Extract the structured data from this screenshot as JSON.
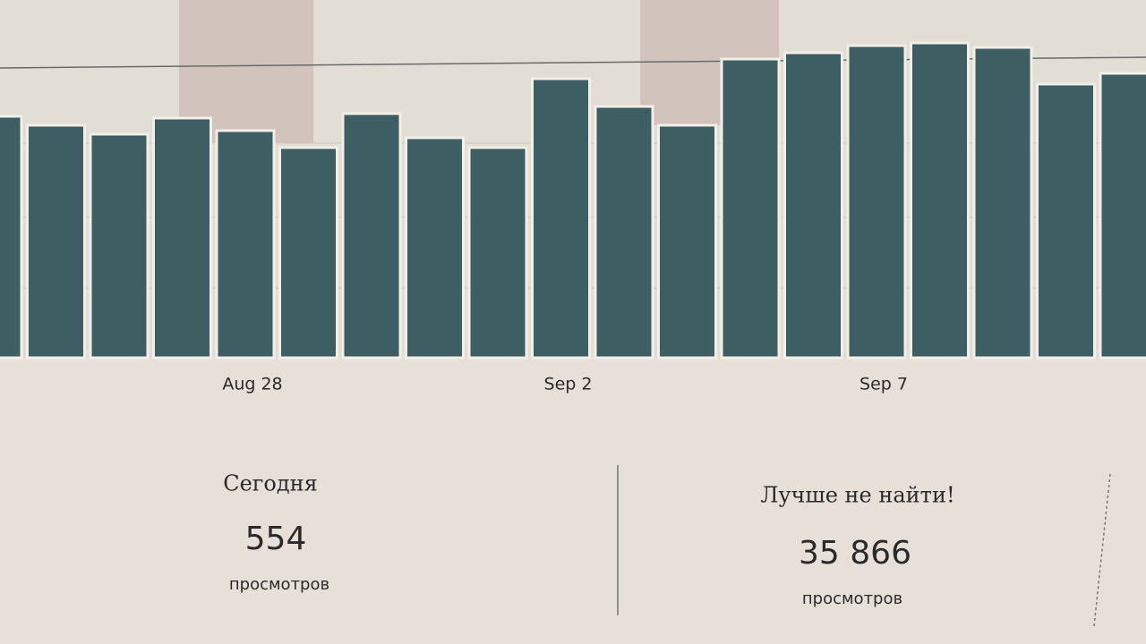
{
  "chart_data": {
    "type": "bar",
    "categories": [
      null,
      null,
      null,
      null,
      "Aug 28",
      null,
      null,
      null,
      null,
      "Sep 2",
      null,
      null,
      null,
      null,
      "Sep 7",
      null,
      null,
      null,
      null
    ],
    "values": [
      270,
      260,
      250,
      268,
      254,
      235,
      273,
      246,
      235,
      312,
      281,
      260,
      334,
      341,
      349,
      352,
      347,
      306,
      318
    ],
    "color": "#3d5f63",
    "ylim": [
      0,
      400
    ]
  },
  "stats": [
    {
      "label": "Сегодня",
      "value": 554,
      "unit": "просмотров"
    },
    {
      "label": "Лучше не найти!",
      "value": "35 866",
      "unit": "просмотров"
    }
  ]
}
